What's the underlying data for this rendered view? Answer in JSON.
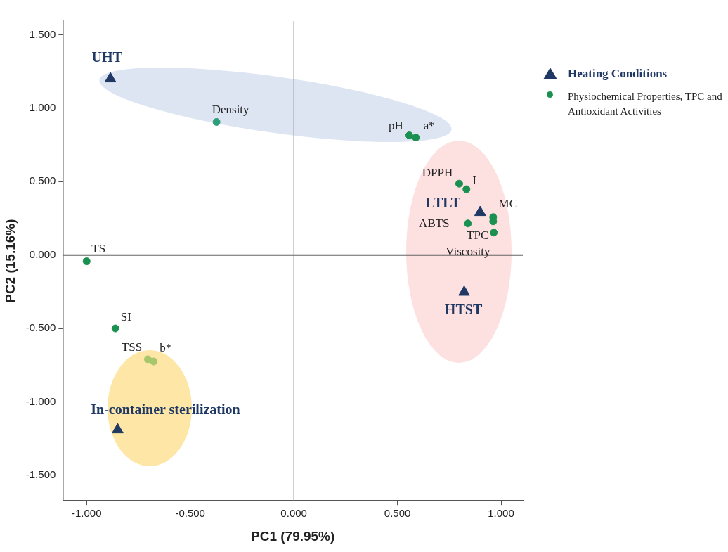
{
  "chart_data": {
    "type": "scatter",
    "xlabel": "PC1 (79.95%)",
    "ylabel": "PC2 (15.16%)",
    "xlim": [
      -1.115,
      1.105
    ],
    "ylim": [
      -1.674,
      1.593
    ],
    "xticks": [
      {
        "value": -1,
        "label": "-1.000"
      },
      {
        "value": -0.5,
        "label": "-0.500"
      },
      {
        "value": 0,
        "label": "0.000"
      },
      {
        "value": 0.5,
        "label": "0.500"
      },
      {
        "value": 1,
        "label": "1.000"
      }
    ],
    "yticks": [
      {
        "value": -1.5,
        "label": "-1.500"
      },
      {
        "value": -1,
        "label": "-1.000"
      },
      {
        "value": -0.5,
        "label": "-0.500"
      },
      {
        "value": 0,
        "label": "0.000"
      },
      {
        "value": 0.5,
        "label": "0.500"
      },
      {
        "value": 1,
        "label": "1.000"
      },
      {
        "value": 1.5,
        "label": "1.500"
      }
    ],
    "grid": false,
    "legend": "right",
    "ref_lines": [
      {
        "axis": "x",
        "value": 0,
        "color": "#9a9a9a"
      },
      {
        "axis": "y",
        "value": 0,
        "color": "#666666"
      }
    ],
    "series": [
      {
        "name": "Heating Conditions",
        "color": "#1f3864",
        "marker": "triangle",
        "x": [
          -0.885,
          0.899,
          0.822,
          -0.85
        ],
        "values": [
          1.2,
          0.29,
          -0.253,
          -1.19
        ]
      },
      {
        "name": "Physiochemical Properties, TPC and Antioxidant Activities",
        "color": "#1a9150",
        "marker": "circle",
        "colors": [
          "#2e9e7a",
          "#1a9150",
          "#1a9150",
          "#1a9150",
          "#1a9150",
          "#1a9150",
          "#1a9150",
          "#1a9150",
          "#1a9150",
          "#1a9150",
          "#1a9150",
          "#a8c66c",
          "#a8c66c"
        ],
        "x": [
          -0.373,
          0.557,
          0.589,
          0.798,
          0.833,
          0.962,
          0.962,
          0.84,
          0.965,
          -1.0,
          -0.861,
          -0.704,
          -0.676
        ],
        "values": [
          0.906,
          0.815,
          0.8,
          0.486,
          0.448,
          0.258,
          0.229,
          0.215,
          0.153,
          -0.043,
          -0.5,
          -0.71,
          -0.725
        ]
      }
    ],
    "annotations": [
      {
        "text": "UHT",
        "x": -0.885,
        "y": 1.2
      },
      {
        "text": "LTLT",
        "x": 0.899,
        "y": 0.29
      },
      {
        "text": "HTST",
        "x": 0.822,
        "y": -0.253
      },
      {
        "text": "In-container sterilization",
        "x": -0.85,
        "y": -1.19
      },
      {
        "text": "Density",
        "x": -0.373,
        "y": 0.906
      },
      {
        "text": "pH",
        "x": 0.557,
        "y": 0.815
      },
      {
        "text": "a*",
        "x": 0.589,
        "y": 0.8
      },
      {
        "text": "DPPH",
        "x": 0.798,
        "y": 0.486
      },
      {
        "text": "L",
        "x": 0.833,
        "y": 0.448
      },
      {
        "text": "MC",
        "x": 0.962,
        "y": 0.258
      },
      {
        "text": "ABTS",
        "x": 0.84,
        "y": 0.215
      },
      {
        "text": "TPC",
        "x": 0.965,
        "y": 0.153
      },
      {
        "text": "Viscosity",
        "x": 0.962,
        "y": 0.229
      },
      {
        "text": "TS",
        "x": -1.0,
        "y": -0.043
      },
      {
        "text": "SI",
        "x": -0.861,
        "y": -0.5
      },
      {
        "text": "TSS",
        "x": -0.704,
        "y": -0.71
      },
      {
        "text": "b*",
        "x": -0.676,
        "y": -0.725
      }
    ]
  }
}
